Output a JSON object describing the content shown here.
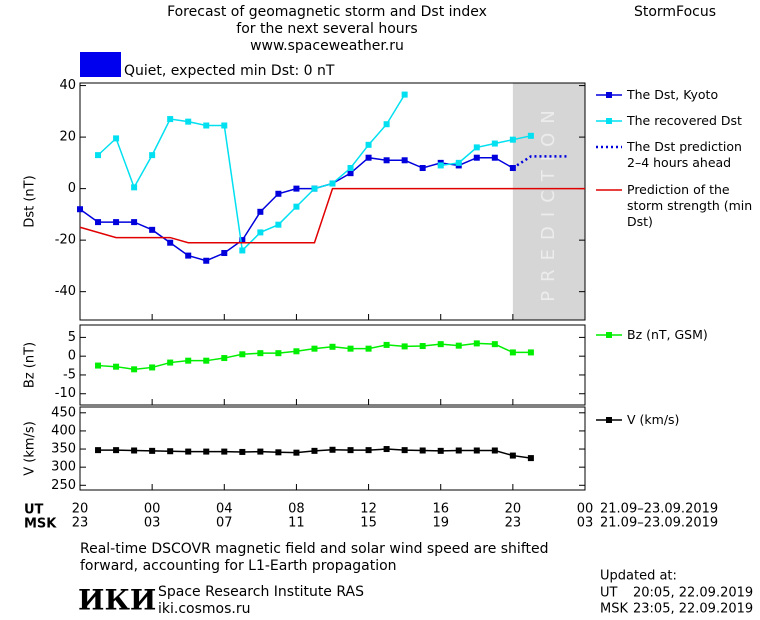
{
  "header": {
    "title_lines": [
      "Forecast of geomagnetic storm and Dst index",
      "for the next several hours",
      "www.spaceweather.ru"
    ],
    "brand": "StormFocus",
    "status": "Quiet, expected min Dst: 0 nT",
    "status_color": "#0000ee"
  },
  "x_axis": {
    "xlim": [
      0,
      28
    ],
    "ut_label": "UT",
    "msk_label": "MSK",
    "xticks": [
      {
        "value": 0,
        "label": "20"
      },
      {
        "value": 4,
        "label": "00"
      },
      {
        "value": 8,
        "label": "04"
      },
      {
        "value": 12,
        "label": "08"
      },
      {
        "value": 16,
        "label": "12"
      },
      {
        "value": 20,
        "label": "16"
      },
      {
        "value": 24,
        "label": "20"
      },
      {
        "value": 28,
        "label": "00"
      }
    ],
    "msk_ticks": [
      {
        "value": 0,
        "label": "23"
      },
      {
        "value": 4,
        "label": "03"
      },
      {
        "value": 8,
        "label": "07"
      },
      {
        "value": 12,
        "label": "11"
      },
      {
        "value": 16,
        "label": "15"
      },
      {
        "value": 20,
        "label": "19"
      },
      {
        "value": 24,
        "label": "23"
      },
      {
        "value": 28,
        "label": "03"
      }
    ],
    "ut_range": "21.09–23.09.2019",
    "msk_range": "21.09–23.09.2019"
  },
  "chart_data": [
    {
      "type": "line",
      "ylabel": "Dst (nT)",
      "ylim": [
        -51,
        41
      ],
      "yticks": [
        -40,
        -20,
        0,
        20,
        40
      ],
      "prediction_region": {
        "x": [
          24,
          28
        ],
        "label": "PREDICTION",
        "color": "#d6d6d6"
      },
      "series": [
        {
          "name": "The Dst, Kyoto",
          "color": "#0000dd",
          "marker": "square",
          "style": "solid",
          "x": [
            0,
            1,
            2,
            3,
            4,
            5,
            6,
            7,
            8,
            9,
            10,
            11,
            12,
            13,
            14,
            15,
            16,
            17,
            18,
            19,
            20,
            21,
            22,
            23,
            24
          ],
          "values": [
            -8,
            -13,
            -13,
            -13,
            -16,
            -21,
            -26,
            -28,
            -25,
            -20,
            -9,
            -2,
            0,
            0,
            2,
            6,
            12,
            11,
            11,
            8,
            10,
            9,
            12,
            12,
            8
          ]
        },
        {
          "name": "The recovered Dst",
          "color": "#00e0f0",
          "marker": "square",
          "style": "solid",
          "x": [
            1,
            2,
            3,
            4,
            5,
            6,
            7,
            8,
            9,
            10,
            11,
            12,
            13,
            14,
            15,
            16,
            17,
            18,
            19,
            20,
            21,
            22,
            23,
            24,
            25
          ],
          "values": [
            13,
            19.5,
            0.5,
            13,
            27,
            26,
            24.5,
            24.5,
            -24,
            -17,
            -14,
            -7,
            0,
            2,
            8,
            17,
            25,
            36.5,
            null,
            9,
            10,
            16,
            17.5,
            19,
            20.5
          ]
        },
        {
          "name": "The Dst prediction 2–4 hours ahead",
          "color": "#0000dd",
          "marker": "none",
          "style": "dotted",
          "x": [
            24,
            25,
            26,
            27
          ],
          "values": [
            8,
            12.5,
            12.5,
            12.5
          ]
        },
        {
          "name": "Prediction of the storm strength (min Dst)",
          "color": "#e00000",
          "marker": "none",
          "style": "solid",
          "x": [
            0,
            2,
            5,
            6,
            13,
            14,
            28
          ],
          "values": [
            -15,
            -19,
            -19,
            -21,
            -21,
            0,
            0
          ]
        }
      ]
    },
    {
      "type": "line",
      "ylabel": "Bz (nT)",
      "ylim": [
        -13,
        8.3
      ],
      "yticks": [
        -10,
        -5,
        0,
        5
      ],
      "series": [
        {
          "name": "Bz (nT, GSM)",
          "color": "#00ee00",
          "marker": "square",
          "style": "solid",
          "x": [
            1,
            2,
            3,
            4,
            5,
            6,
            7,
            8,
            9,
            10,
            11,
            12,
            13,
            14,
            15,
            16,
            17,
            18,
            19,
            20,
            21,
            22,
            23,
            24,
            25
          ],
          "values": [
            -2.5,
            -2.8,
            -3.5,
            -3,
            -1.7,
            -1.2,
            -1.2,
            -0.5,
            0.5,
            0.8,
            0.8,
            1.3,
            2,
            2.5,
            2,
            2,
            3,
            2.6,
            2.7,
            3.2,
            2.8,
            3.4,
            3.2,
            1,
            1
          ]
        }
      ]
    },
    {
      "type": "line",
      "ylabel": "V (km/s)",
      "ylim": [
        237,
        466
      ],
      "yticks": [
        250,
        300,
        350,
        400,
        450
      ],
      "series": [
        {
          "name": "V (km/s)",
          "color": "#000000",
          "marker": "square",
          "style": "solid",
          "x": [
            1,
            2,
            3,
            4,
            5,
            6,
            7,
            8,
            9,
            10,
            11,
            12,
            13,
            14,
            15,
            16,
            17,
            18,
            19,
            20,
            21,
            22,
            23,
            24,
            25
          ],
          "values": [
            347,
            347,
            346,
            345,
            344,
            343,
            343,
            343,
            342,
            343,
            341,
            340,
            345,
            348,
            347,
            347,
            350,
            347,
            346,
            345,
            346,
            346,
            346,
            332,
            325
          ]
        }
      ]
    }
  ],
  "footer": {
    "note_lines": [
      "Real-time DSCOVR magnetic field and solar wind speed are shifted",
      "forward, accounting for L1-Earth propagation"
    ],
    "logo": "ИКИ",
    "institute": "Space Research Institute RAS",
    "url": "iki.cosmos.ru",
    "updated": {
      "heading": "Updated at:",
      "ut": "20:05, 22.09.2019",
      "msk": "23:05, 22.09.2019"
    }
  }
}
